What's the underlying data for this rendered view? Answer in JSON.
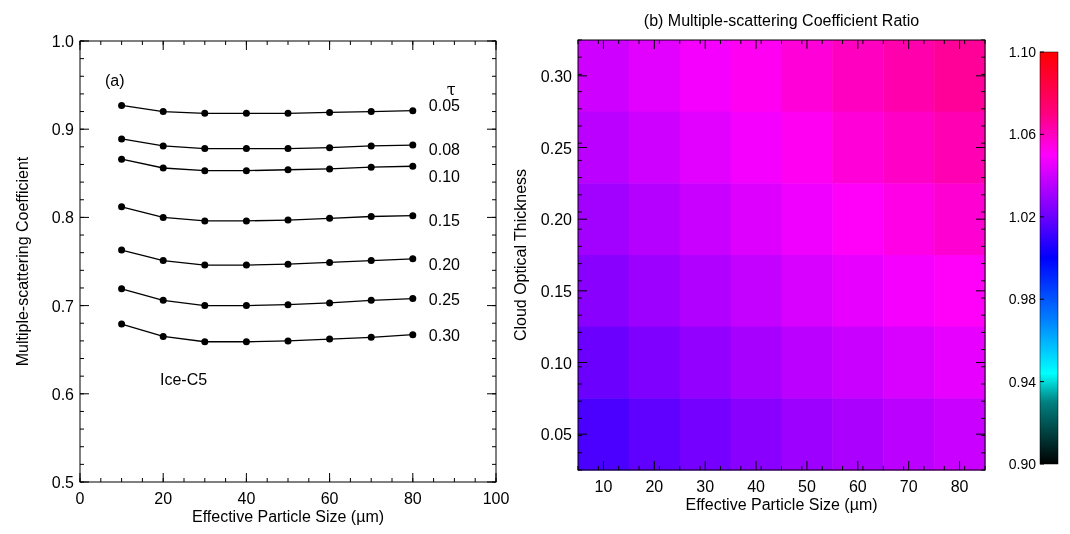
{
  "chart_data": [
    {
      "type": "line",
      "xlabel": "Effective Particle Size (µm)",
      "ylabel": "Multiple-scattering Coefficient",
      "legend_title": "τ",
      "annotations": [
        "(a)",
        "Ice-C5"
      ],
      "x": [
        10,
        20,
        30,
        40,
        50,
        60,
        70,
        80
      ],
      "xlim": [
        0,
        100
      ],
      "xticks": [
        0,
        20,
        40,
        60,
        80,
        100
      ],
      "ylim": [
        0.5,
        1.0
      ],
      "yticks": [
        0.5,
        0.6,
        0.7,
        0.8,
        0.9,
        {
          "value": 1.0,
          "label": "1.0"
        }
      ],
      "marker": "circle",
      "line_style": "solid",
      "legend": "right",
      "series": [
        {
          "name": "0.05",
          "color": "#000000",
          "values": [
            0.927,
            0.92,
            0.918,
            0.918,
            0.918,
            0.919,
            0.92,
            0.921
          ]
        },
        {
          "name": "0.08",
          "color": "#000000",
          "values": [
            0.889,
            0.881,
            0.878,
            0.878,
            0.878,
            0.879,
            0.881,
            0.882
          ]
        },
        {
          "name": "0.10",
          "color": "#000000",
          "values": [
            0.866,
            0.856,
            0.853,
            0.853,
            0.854,
            0.855,
            0.857,
            0.858
          ]
        },
        {
          "name": "0.15",
          "color": "#000000",
          "values": [
            0.812,
            0.8,
            0.796,
            0.796,
            0.797,
            0.799,
            0.801,
            0.802
          ]
        },
        {
          "name": "0.20",
          "color": "#000000",
          "values": [
            0.763,
            0.751,
            0.746,
            0.746,
            0.747,
            0.749,
            0.751,
            0.753
          ]
        },
        {
          "name": "0.25",
          "color": "#000000",
          "values": [
            0.719,
            0.706,
            0.7,
            0.7,
            0.701,
            0.703,
            0.706,
            0.708
          ]
        },
        {
          "name": "0.30",
          "color": "#000000",
          "values": [
            0.679,
            0.665,
            0.659,
            0.659,
            0.66,
            0.662,
            0.664,
            0.667
          ]
        }
      ]
    },
    {
      "type": "heatmap",
      "title": "(b) Multiple-scattering Coefficient Ratio",
      "xlabel": "Effective Particle Size (µm)",
      "ylabel": "Cloud Optical Thickness",
      "categories": [
        "10",
        "20",
        "30",
        "40",
        "50",
        "60",
        "70",
        "80"
      ],
      "y_categories": [
        "0.30",
        "0.25",
        "0.20",
        "0.15",
        "0.10",
        "0.05"
      ],
      "clim": [
        0.9,
        1.1
      ],
      "cticks": [
        {
          "value": 0.9,
          "label": "0.90"
        },
        0.94,
        0.98,
        1.02,
        1.06,
        {
          "value": 1.1,
          "label": "1.10"
        }
      ],
      "cells": [
        [
          1.04,
          1.044,
          1.048,
          1.052,
          1.056,
          1.06,
          1.063,
          1.066
        ],
        [
          1.036,
          1.04,
          1.044,
          1.048,
          1.052,
          1.056,
          1.059,
          1.062
        ],
        [
          1.031,
          1.035,
          1.039,
          1.043,
          1.047,
          1.051,
          1.054,
          1.057
        ],
        [
          1.026,
          1.03,
          1.034,
          1.038,
          1.042,
          1.045,
          1.048,
          1.051
        ],
        [
          1.02,
          1.024,
          1.028,
          1.032,
          1.036,
          1.039,
          1.042,
          1.045
        ],
        [
          1.014,
          1.018,
          1.022,
          1.026,
          1.03,
          1.033,
          1.036,
          1.039
        ]
      ]
    }
  ]
}
